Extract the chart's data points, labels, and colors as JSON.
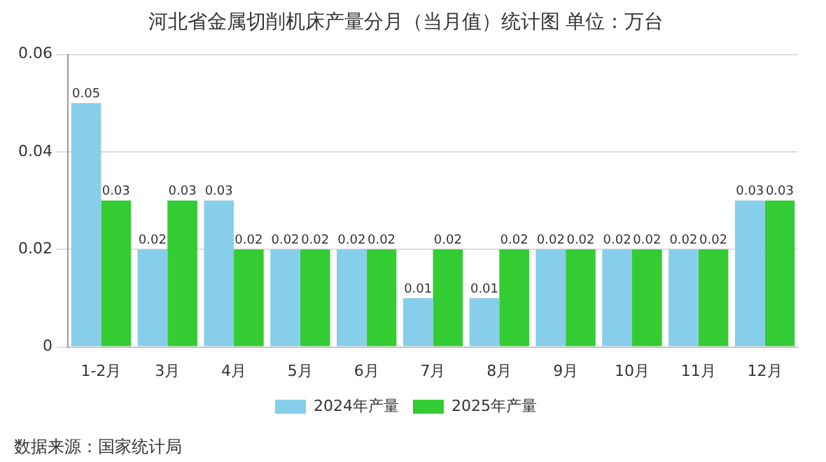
{
  "chart_data": {
    "type": "bar",
    "title": "河北省金属切削机床产量分月（当月值）统计图 单位：万台",
    "categories": [
      "1-2月",
      "3月",
      "4月",
      "5月",
      "6月",
      "7月",
      "8月",
      "9月",
      "10月",
      "11月",
      "12月"
    ],
    "series": [
      {
        "name": "2024年产量",
        "color": "#87ceeb",
        "values": [
          0.05,
          0.02,
          0.03,
          0.02,
          0.02,
          0.01,
          0.01,
          0.02,
          0.02,
          0.02,
          0.03
        ]
      },
      {
        "name": "2025年产量",
        "color": "#33cc33",
        "values": [
          0.03,
          0.03,
          0.02,
          0.02,
          0.02,
          0.02,
          0.02,
          0.02,
          0.02,
          0.02,
          0.03
        ]
      }
    ],
    "ylim": [
      0,
      0.06
    ],
    "yticks": [
      0,
      0.02,
      0.04,
      0.06
    ],
    "grid": "y",
    "legend": "bottom",
    "data_labels": true,
    "annotations": [
      "数据来源：国家统计局"
    ]
  }
}
